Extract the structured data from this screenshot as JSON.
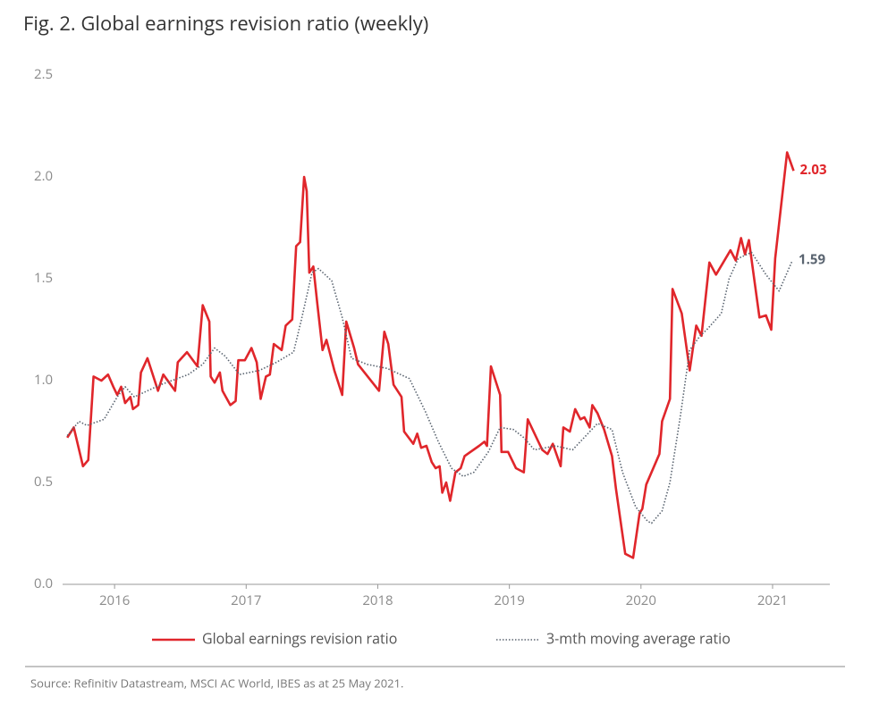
{
  "chart_data": {
    "type": "line",
    "title": "Fig. 2. Global earnings revision ratio (weekly)",
    "source": "Source: Refinitiv Datastream, MSCI AC World, IBES as at 25 May 2021.",
    "xlim": [
      2015.605,
      2021.435
    ],
    "xticks": [
      2016,
      2017,
      2018,
      2019,
      2020,
      2021
    ],
    "ylim": [
      0,
      2.5
    ],
    "yticks": [
      {
        "value": 0,
        "label": "0.0"
      },
      0.5,
      {
        "value": 1,
        "label": "1.0"
      },
      1.5,
      {
        "value": 2,
        "label": "2.0"
      },
      2.5
    ],
    "grid": false,
    "legend": "bottom",
    "series": [
      {
        "name": "Global earnings revision ratio",
        "color": "#e0262b",
        "style": "solid",
        "end_label": "2.03",
        "x": [
          2015.64,
          2015.69,
          2015.76,
          2015.8,
          2015.84,
          2015.9,
          2015.95,
          2015.99,
          2016.02,
          2016.05,
          2016.08,
          2016.12,
          2016.14,
          2016.18,
          2016.2,
          2016.25,
          2016.33,
          2016.37,
          2016.46,
          2016.48,
          2016.55,
          2016.63,
          2016.67,
          2016.72,
          2016.73,
          2016.76,
          2016.8,
          2016.82,
          2016.88,
          2016.92,
          2016.94,
          2016.99,
          2017.04,
          2017.08,
          2017.11,
          2017.15,
          2017.18,
          2017.21,
          2017.27,
          2017.3,
          2017.35,
          2017.38,
          2017.41,
          2017.44,
          2017.46,
          2017.48,
          2017.51,
          2017.54,
          2017.58,
          2017.61,
          2017.67,
          2017.73,
          2017.76,
          2017.82,
          2017.85,
          2018.01,
          2018.05,
          2018.08,
          2018.12,
          2018.18,
          2018.2,
          2018.27,
          2018.3,
          2018.33,
          2018.37,
          2018.41,
          2018.44,
          2018.47,
          2018.49,
          2018.52,
          2018.55,
          2018.59,
          2018.63,
          2018.66,
          2018.77,
          2018.81,
          2018.83,
          2018.86,
          2018.93,
          2018.94,
          2018.99,
          2019.05,
          2019.11,
          2019.14,
          2019.25,
          2019.29,
          2019.33,
          2019.39,
          2019.41,
          2019.46,
          2019.5,
          2019.54,
          2019.57,
          2019.61,
          2019.63,
          2019.67,
          2019.72,
          2019.78,
          2019.81,
          2019.88,
          2019.94,
          2019.99,
          2020.01,
          2020.04,
          2020.14,
          2020.16,
          2020.22,
          2020.24,
          2020.31,
          2020.37,
          2020.42,
          2020.46,
          2020.52,
          2020.57,
          2020.68,
          2020.72,
          2020.76,
          2020.79,
          2020.82,
          2020.9,
          2020.95,
          2020.99,
          2021.02,
          2021.11,
          2021.16
        ],
        "values": [
          0.72,
          0.77,
          0.58,
          0.61,
          1.02,
          1.0,
          1.03,
          0.97,
          0.93,
          0.97,
          0.89,
          0.92,
          0.86,
          0.88,
          1.04,
          1.11,
          0.95,
          1.03,
          0.95,
          1.09,
          1.14,
          1.07,
          1.37,
          1.29,
          1.02,
          0.99,
          1.04,
          0.95,
          0.88,
          0.9,
          1.1,
          1.1,
          1.16,
          1.09,
          0.91,
          1.02,
          1.03,
          1.18,
          1.15,
          1.27,
          1.3,
          1.66,
          1.68,
          2.0,
          1.93,
          1.53,
          1.56,
          1.38,
          1.15,
          1.2,
          1.05,
          0.93,
          1.29,
          1.16,
          1.08,
          0.95,
          1.24,
          1.18,
          0.98,
          0.92,
          0.75,
          0.69,
          0.74,
          0.67,
          0.68,
          0.6,
          0.57,
          0.58,
          0.45,
          0.5,
          0.41,
          0.55,
          0.57,
          0.63,
          0.68,
          0.7,
          0.68,
          1.07,
          0.93,
          0.65,
          0.65,
          0.57,
          0.55,
          0.81,
          0.66,
          0.64,
          0.69,
          0.58,
          0.77,
          0.75,
          0.86,
          0.81,
          0.82,
          0.77,
          0.88,
          0.84,
          0.76,
          0.63,
          0.47,
          0.15,
          0.13,
          0.35,
          0.37,
          0.49,
          0.64,
          0.8,
          0.91,
          1.45,
          1.33,
          1.05,
          1.27,
          1.22,
          1.58,
          1.52,
          1.64,
          1.59,
          1.7,
          1.62,
          1.69,
          1.31,
          1.32,
          1.25,
          1.6,
          2.12,
          2.03
        ]
      },
      {
        "name": "3-mth moving average ratio",
        "color": "#5a6470",
        "style": "dotted",
        "end_label": "1.59",
        "x": [
          2015.64,
          2015.73,
          2015.79,
          2015.92,
          2016.02,
          2016.08,
          2016.15,
          2016.35,
          2016.56,
          2016.67,
          2016.76,
          2016.84,
          2016.95,
          2017.1,
          2017.23,
          2017.36,
          2017.42,
          2017.5,
          2017.55,
          2017.65,
          2017.73,
          2017.8,
          2017.92,
          2018.07,
          2018.24,
          2018.36,
          2018.46,
          2018.56,
          2018.65,
          2018.73,
          2018.84,
          2018.93,
          2019.03,
          2019.11,
          2019.19,
          2019.35,
          2019.48,
          2019.67,
          2019.78,
          2019.86,
          2019.96,
          2020.05,
          2020.08,
          2020.16,
          2020.22,
          2020.3,
          2020.37,
          2020.45,
          2020.5,
          2020.61,
          2020.67,
          2020.74,
          2020.84,
          2020.95,
          2021.05,
          2021.15
        ],
        "values": [
          0.73,
          0.8,
          0.78,
          0.81,
          0.92,
          0.97,
          0.92,
          0.98,
          1.03,
          1.08,
          1.16,
          1.12,
          1.03,
          1.05,
          1.09,
          1.14,
          1.3,
          1.53,
          1.55,
          1.49,
          1.31,
          1.11,
          1.08,
          1.06,
          1.01,
          0.85,
          0.7,
          0.57,
          0.53,
          0.55,
          0.65,
          0.77,
          0.76,
          0.72,
          0.66,
          0.68,
          0.66,
          0.79,
          0.76,
          0.55,
          0.38,
          0.31,
          0.3,
          0.36,
          0.5,
          0.83,
          1.15,
          1.22,
          1.25,
          1.33,
          1.5,
          1.6,
          1.63,
          1.52,
          1.44,
          1.59
        ]
      }
    ]
  }
}
